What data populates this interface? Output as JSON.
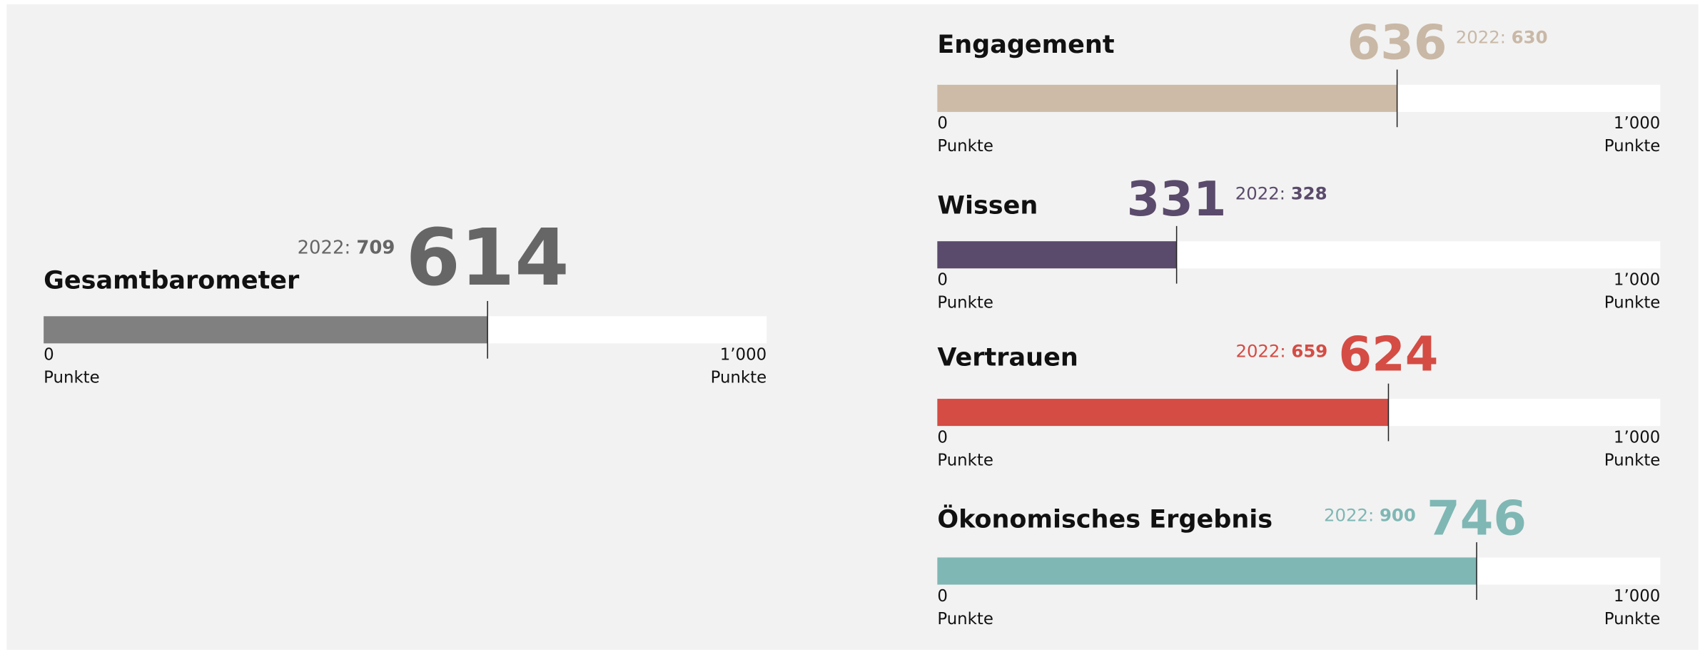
{
  "chart_data": [
    {
      "type": "bar",
      "title": "Gesamtbarometer",
      "value": 614,
      "comparison": {
        "label": "2022:",
        "value": 709
      },
      "xlim": [
        0,
        1000
      ],
      "xticks": [
        0,
        {
          "value": 1000,
          "label": "1’000"
        }
      ],
      "x_unit": "Punkte",
      "color": "#808080",
      "value_color": "#666666"
    },
    {
      "type": "bar",
      "title": "Engagement",
      "value": 636,
      "comparison": {
        "label": "2022:",
        "value": 630
      },
      "xlim": [
        0,
        1000
      ],
      "xticks": [
        0,
        {
          "value": 1000,
          "label": "1’000"
        }
      ],
      "x_unit": "Punkte",
      "color": "#cdbba8",
      "value_color": "#c9b8a6"
    },
    {
      "type": "bar",
      "title": "Wissen",
      "value": 331,
      "comparison": {
        "label": "2022:",
        "value": 328
      },
      "xlim": [
        0,
        1000
      ],
      "xticks": [
        0,
        {
          "value": 1000,
          "label": "1’000"
        }
      ],
      "x_unit": "Punkte",
      "color": "#5a4a6b",
      "value_color": "#5a4a6b"
    },
    {
      "type": "bar",
      "title": "Vertrauen",
      "value": 624,
      "comparison": {
        "label": "2022:",
        "value": 659
      },
      "xlim": [
        0,
        1000
      ],
      "xticks": [
        0,
        {
          "value": 1000,
          "label": "1’000"
        }
      ],
      "x_unit": "Punkte",
      "color": "#d44c44",
      "value_color": "#d44c44"
    },
    {
      "type": "bar",
      "title": "Ökonomisches Ergebnis",
      "value": 746,
      "comparison": {
        "label": "2022:",
        "value": 900
      },
      "xlim": [
        0,
        1000
      ],
      "xticks": [
        0,
        {
          "value": 1000,
          "label": "1’000"
        }
      ],
      "x_unit": "Punkte",
      "color": "#7fb7b4",
      "value_color": "#7fb7b4"
    }
  ]
}
